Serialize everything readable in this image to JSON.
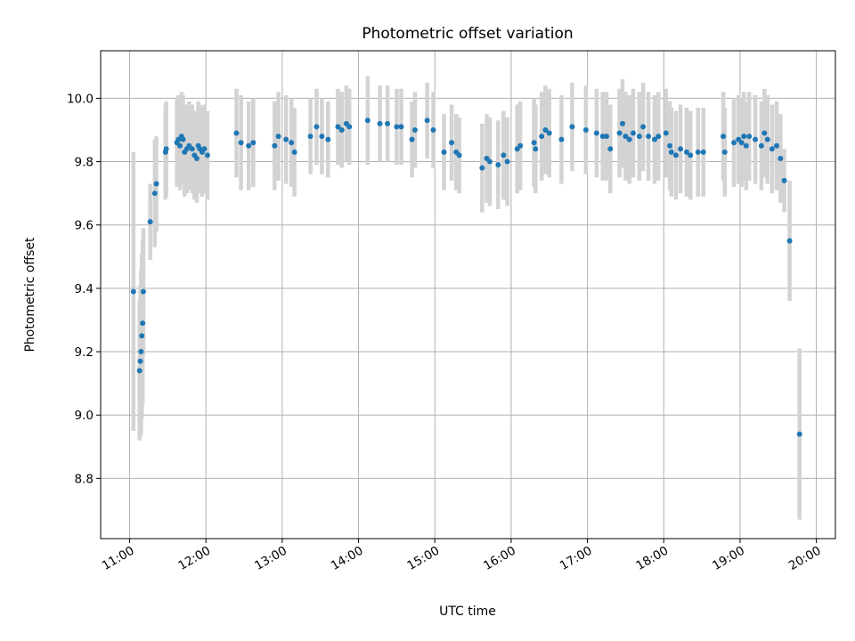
{
  "chart_data": {
    "type": "scatter",
    "title": "Photometric offset variation",
    "xlabel": "UTC time",
    "ylabel": "Photometric offset",
    "x_unit": "hours (UTC, decimal)",
    "xlim": [
      10.62,
      20.25
    ],
    "ylim": [
      8.61,
      10.15
    ],
    "x_ticks": [
      11,
      12,
      13,
      14,
      15,
      16,
      17,
      18,
      19,
      20
    ],
    "x_tick_labels": [
      "11:00",
      "12:00",
      "13:00",
      "14:00",
      "15:00",
      "16:00",
      "17:00",
      "18:00",
      "19:00",
      "20:00"
    ],
    "y_ticks": [
      8.8,
      9.0,
      9.2,
      9.4,
      9.6,
      9.8,
      10.0
    ],
    "y_tick_labels": [
      "8.8",
      "9.0",
      "9.2",
      "9.4",
      "9.6",
      "9.8",
      "10.0"
    ],
    "grid": true,
    "colors": {
      "points": "#1f77b4",
      "error_bars": "#d3d3d3"
    },
    "series": [
      {
        "x": [
          11.05,
          11.13,
          11.14,
          11.15,
          11.16,
          11.17,
          11.18,
          11.27,
          11.33,
          11.35,
          11.47,
          11.48,
          11.62,
          11.64,
          11.66,
          11.68,
          11.7,
          11.72,
          11.75,
          11.78,
          11.82,
          11.85,
          11.88,
          11.9,
          11.92,
          11.95,
          11.98,
          12.02,
          12.4,
          12.46,
          12.56,
          12.62,
          12.9,
          12.95,
          13.05,
          13.12,
          13.16,
          13.37,
          13.45,
          13.52,
          13.6,
          13.73,
          13.78,
          13.84,
          13.88,
          14.12,
          14.28,
          14.38,
          14.5,
          14.56,
          14.7,
          14.74,
          14.9,
          14.98,
          15.12,
          15.22,
          15.28,
          15.32,
          15.62,
          15.68,
          15.72,
          15.83,
          15.9,
          15.95,
          16.08,
          16.12,
          16.3,
          16.32,
          16.4,
          16.45,
          16.5,
          16.66,
          16.8,
          16.98,
          17.12,
          17.2,
          17.25,
          17.3,
          17.42,
          17.46,
          17.5,
          17.55,
          17.6,
          17.68,
          17.73,
          17.8,
          17.88,
          17.93,
          18.03,
          18.08,
          18.1,
          18.16,
          18.22,
          18.3,
          18.35,
          18.45,
          18.52,
          18.78,
          18.8,
          18.92,
          18.98,
          19.02,
          19.05,
          19.08,
          19.12,
          19.2,
          19.28,
          19.32,
          19.36,
          19.42,
          19.48,
          19.53,
          19.58,
          19.65,
          19.78
        ],
        "y": [
          9.39,
          9.14,
          9.17,
          9.2,
          9.25,
          9.29,
          9.39,
          9.61,
          9.7,
          9.73,
          9.83,
          9.84,
          9.86,
          9.87,
          9.85,
          9.88,
          9.87,
          9.83,
          9.84,
          9.85,
          9.84,
          9.82,
          9.81,
          9.85,
          9.84,
          9.83,
          9.84,
          9.82,
          9.89,
          9.86,
          9.85,
          9.86,
          9.85,
          9.88,
          9.87,
          9.86,
          9.83,
          9.88,
          9.91,
          9.88,
          9.87,
          9.91,
          9.9,
          9.92,
          9.91,
          9.93,
          9.92,
          9.92,
          9.91,
          9.91,
          9.87,
          9.9,
          9.93,
          9.9,
          9.83,
          9.86,
          9.83,
          9.82,
          9.78,
          9.81,
          9.8,
          9.79,
          9.82,
          9.8,
          9.84,
          9.85,
          9.86,
          9.84,
          9.88,
          9.9,
          9.89,
          9.87,
          9.91,
          9.9,
          9.89,
          9.88,
          9.88,
          9.84,
          9.89,
          9.92,
          9.88,
          9.87,
          9.89,
          9.88,
          9.91,
          9.88,
          9.87,
          9.88,
          9.89,
          9.85,
          9.83,
          9.82,
          9.84,
          9.83,
          9.82,
          9.83,
          9.83,
          9.88,
          9.83,
          9.86,
          9.87,
          9.86,
          9.88,
          9.85,
          9.88,
          9.87,
          9.85,
          9.89,
          9.87,
          9.84,
          9.85,
          9.81,
          9.74,
          9.55,
          8.94
        ],
        "err": [
          0.44,
          0.22,
          0.24,
          0.26,
          0.26,
          0.26,
          0.2,
          0.12,
          0.17,
          0.15,
          0.15,
          0.15,
          0.14,
          0.14,
          0.14,
          0.14,
          0.14,
          0.14,
          0.14,
          0.14,
          0.14,
          0.14,
          0.14,
          0.14,
          0.14,
          0.14,
          0.14,
          0.14,
          0.14,
          0.15,
          0.14,
          0.14,
          0.14,
          0.14,
          0.14,
          0.14,
          0.14,
          0.12,
          0.12,
          0.12,
          0.12,
          0.12,
          0.12,
          0.12,
          0.12,
          0.14,
          0.12,
          0.12,
          0.12,
          0.12,
          0.12,
          0.12,
          0.12,
          0.12,
          0.12,
          0.12,
          0.12,
          0.12,
          0.14,
          0.14,
          0.14,
          0.14,
          0.14,
          0.14,
          0.14,
          0.14,
          0.14,
          0.14,
          0.14,
          0.14,
          0.14,
          0.14,
          0.14,
          0.14,
          0.14,
          0.14,
          0.14,
          0.14,
          0.14,
          0.14,
          0.14,
          0.14,
          0.14,
          0.14,
          0.14,
          0.14,
          0.14,
          0.14,
          0.14,
          0.14,
          0.14,
          0.14,
          0.14,
          0.14,
          0.14,
          0.14,
          0.14,
          0.14,
          0.14,
          0.14,
          0.14,
          0.14,
          0.14,
          0.14,
          0.14,
          0.14,
          0.14,
          0.14,
          0.14,
          0.14,
          0.14,
          0.14,
          0.1,
          0.19,
          0.27
        ]
      }
    ]
  }
}
